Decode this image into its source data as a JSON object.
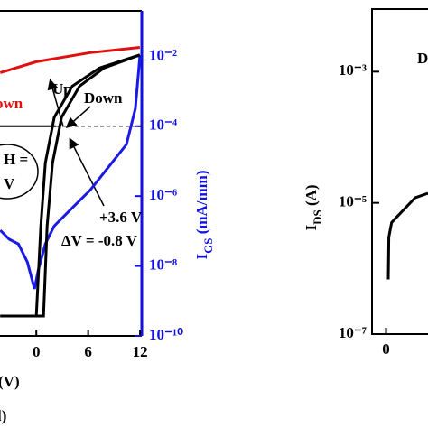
{
  "chart_data": [
    {
      "type": "line",
      "x_label": "(V)",
      "y2_label": {
        "main": "I",
        "sub": "GS",
        "unit": " (mA/mm)"
      },
      "xlim": [
        -4.2,
        12.2
      ],
      "xticks": [
        0,
        6,
        12
      ],
      "y2lim": [
        1e-10,
        0.2
      ],
      "y2_log": true,
      "axis_color": "#1010e0",
      "y2ticks": [
        {
          "value": 0.01,
          "label": "10⁻²"
        },
        {
          "value": 0.0001,
          "label": "10⁻⁴"
        },
        {
          "value": 1e-06,
          "label": "10⁻⁶"
        },
        {
          "value": 1e-08,
          "label": "10⁻⁸"
        },
        {
          "value": 1e-10,
          "label": "10⁻¹⁰"
        }
      ],
      "hline": 0.0001,
      "series": [
        {
          "name": "IGS",
          "color": "#1a1ae6",
          "axis": "y2",
          "x": [
            -4.17,
            -3.13,
            -2.08,
            -1.04,
            -0.21,
            0.21,
            1.04,
            2.08,
            4.17,
            6.25,
            8.33,
            10.42,
            11.46,
            11.98
          ],
          "values": [
            1.05e-07,
            5.8e-08,
            4.3e-08,
            1.3e-08,
            2.2e-09,
            7.3e-09,
            4.3e-08,
            1.4e-07,
            4.6e-07,
            1.5e-06,
            6.7e-06,
            3e-05,
            0.00032,
            0.01
          ]
        },
        {
          "name": "Up",
          "color": "#000000",
          "axis": "y2",
          "x": [
            -4.17,
            0,
            0.52,
            1.04,
            2.08,
            4.17,
            7.29,
            11.98
          ],
          "values": [
            3.7e-10,
            3.7e-10,
            1.4e-07,
            8.9e-06,
            0.00018,
            0.0014,
            0.0046,
            0.011
          ]
        },
        {
          "name": "Down",
          "color": "#000000",
          "axis": "y2",
          "x": [
            -4.17,
            0.83,
            1.25,
            1.88,
            2.92,
            5,
            7.81,
            11.98
          ],
          "values": [
            3.7e-10,
            3.7e-10,
            1.4e-07,
            8.9e-06,
            0.00018,
            0.0014,
            0.0046,
            0.011
          ]
        },
        {
          "name": "own",
          "color": "#e01010",
          "axis": "y2",
          "x": [
            -4.17,
            0,
            6.25,
            11.98
          ],
          "values": [
            0.0034,
            0.007,
            0.0127,
            0.018
          ]
        }
      ],
      "annotations": [
        "own",
        "Up",
        "Down",
        "+3.6 V",
        "ΔV = -0.8 V",
        "H =",
        "V",
        "l)"
      ]
    },
    {
      "type": "line",
      "y_label": {
        "main": "I",
        "sub": "DS",
        "unit": " (A)"
      },
      "xlim": [
        -0.75,
        2.25
      ],
      "xticks": [
        0
      ],
      "ylim": [
        1e-07,
        0.009
      ],
      "y_log": true,
      "yticks": [
        {
          "value": 0.001,
          "label": "10⁻³"
        },
        {
          "value": 1e-05,
          "label": "10⁻⁵"
        },
        {
          "value": 1e-07,
          "label": "10⁻⁷"
        }
      ],
      "series": [
        {
          "color": "#000000",
          "x": [
            0.12,
            0.15,
            0.3,
            0.6,
            1.57,
            2.25
          ],
          "values": [
            6.8e-07,
            3e-06,
            5e-06,
            6.2e-06,
            1.2e-05,
            1.4e-05
          ]
        }
      ],
      "annotations": [
        "D"
      ]
    }
  ]
}
